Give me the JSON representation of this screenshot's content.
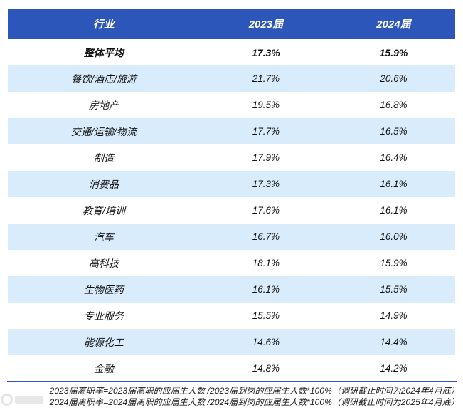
{
  "header": {
    "columns": [
      "行业",
      "2023届",
      "2024届"
    ]
  },
  "chart_data": {
    "type": "table",
    "title": "",
    "columns": [
      "行业",
      "2023届",
      "2024届"
    ],
    "rows": [
      [
        "整体平均",
        "17.3%",
        "15.9%"
      ],
      [
        "餐饮/酒店/旅游",
        "21.7%",
        "20.6%"
      ],
      [
        "房地产",
        "19.5%",
        "16.8%"
      ],
      [
        "交通/运输/物流",
        "17.7%",
        "16.5%"
      ],
      [
        "制造",
        "17.9%",
        "16.4%"
      ],
      [
        "消费品",
        "17.3%",
        "16.1%"
      ],
      [
        "教育/培训",
        "17.6%",
        "16.1%"
      ],
      [
        "汽车",
        "16.7%",
        "16.0%"
      ],
      [
        "高科技",
        "18.1%",
        "15.9%"
      ],
      [
        "生物医药",
        "16.1%",
        "15.5%"
      ],
      [
        "专业服务",
        "15.5%",
        "14.9%"
      ],
      [
        "能源化工",
        "14.6%",
        "14.4%"
      ],
      [
        "金融",
        "14.8%",
        "14.2%"
      ]
    ],
    "emphasized_row": 0,
    "layout": {
      "striped": true,
      "stripe_rows": "odd-indexes"
    }
  },
  "footnotes": [
    "2023届离职率=2023届离职的应届生人数 /2023届到岗的应届生人数*100%（调研截止时间为2024年4月底）",
    "2024届离职率=2024届离职的应届生人数 /2024届到岗的应届生人数*100%（调研截止时间为2025年4月底）"
  ],
  "colors": {
    "header_bg": "#2d56ba",
    "header_text": "#ffffff",
    "row_bg": "#ffffff",
    "row_alt_bg": "#d9ecfb",
    "divider": "#2d56ba",
    "body_text": "#111111",
    "footnote_text": "#1a1a1a"
  }
}
